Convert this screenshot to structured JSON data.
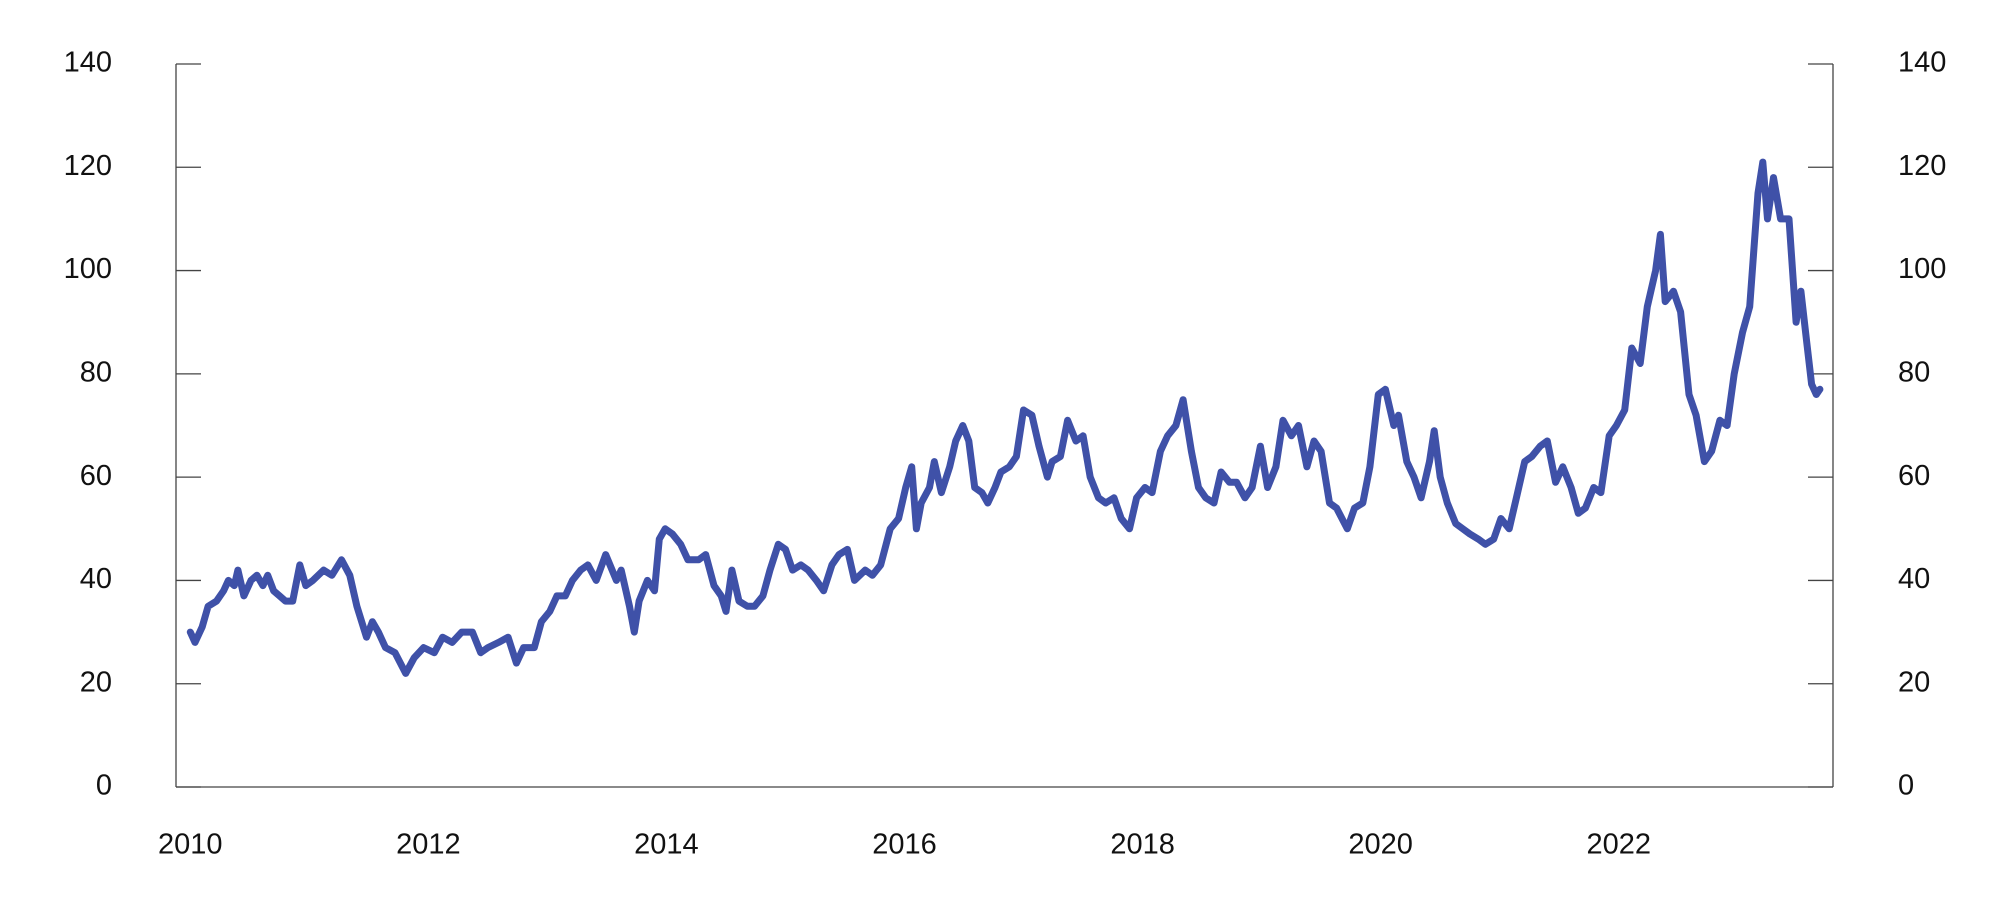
{
  "chart_data": {
    "type": "line",
    "x": [
      2010.0,
      2010.04,
      2010.1,
      2010.15,
      2010.22,
      2010.28,
      2010.32,
      2010.37,
      2010.4,
      2010.45,
      2010.51,
      2010.56,
      2010.61,
      2010.65,
      2010.7,
      2010.75,
      2010.8,
      2010.86,
      2010.92,
      2010.97,
      2011.03,
      2011.12,
      2011.19,
      2011.27,
      2011.34,
      2011.4,
      2011.48,
      2011.53,
      2011.58,
      2011.64,
      2011.72,
      2011.81,
      2011.88,
      2011.96,
      2012.05,
      2012.12,
      2012.2,
      2012.28,
      2012.37,
      2012.44,
      2012.5,
      2012.59,
      2012.67,
      2012.74,
      2012.8,
      2012.89,
      2012.95,
      2013.02,
      2013.08,
      2013.15,
      2013.21,
      2013.28,
      2013.34,
      2013.41,
      2013.49,
      2013.58,
      2013.62,
      2013.69,
      2013.73,
      2013.77,
      2013.84,
      2013.9,
      2013.94,
      2013.99,
      2014.05,
      2014.12,
      2014.18,
      2014.27,
      2014.33,
      2014.4,
      2014.46,
      2014.5,
      2014.55,
      2014.61,
      2014.68,
      2014.74,
      2014.81,
      2014.87,
      2014.94,
      2015.0,
      2015.06,
      2015.13,
      2015.19,
      2015.26,
      2015.32,
      2015.39,
      2015.45,
      2015.52,
      2015.58,
      2015.67,
      2015.73,
      2015.8,
      2015.88,
      2015.95,
      2016.01,
      2016.06,
      2016.1,
      2016.14,
      2016.21,
      2016.25,
      2016.31,
      2016.38,
      2016.43,
      2016.49,
      2016.54,
      2016.59,
      2016.65,
      2016.7,
      2016.76,
      2016.81,
      2016.88,
      2016.94,
      2017.0,
      2017.07,
      2017.13,
      2017.2,
      2017.24,
      2017.31,
      2017.37,
      2017.44,
      2017.5,
      2017.56,
      2017.63,
      2017.69,
      2017.76,
      2017.82,
      2017.89,
      2017.95,
      2018.02,
      2018.08,
      2018.15,
      2018.21,
      2018.28,
      2018.34,
      2018.41,
      2018.47,
      2018.53,
      2018.6,
      2018.66,
      2018.73,
      2018.79,
      2018.86,
      2018.92,
      2018.99,
      2019.05,
      2019.12,
      2019.18,
      2019.25,
      2019.31,
      2019.38,
      2019.44,
      2019.5,
      2019.57,
      2019.63,
      2019.72,
      2019.78,
      2019.85,
      2019.91,
      2019.98,
      2020.04,
      2020.11,
      2020.15,
      2020.22,
      2020.28,
      2020.34,
      2020.41,
      2020.45,
      2020.5,
      2020.56,
      2020.63,
      2020.69,
      2020.75,
      2020.82,
      2020.88,
      2020.95,
      2021.01,
      2021.08,
      2021.14,
      2021.21,
      2021.27,
      2021.34,
      2021.4,
      2021.47,
      2021.53,
      2021.6,
      2021.66,
      2021.72,
      2021.79,
      2021.85,
      2021.92,
      2021.98,
      2022.05,
      2022.11,
      2022.18,
      2022.24,
      2022.31,
      2022.35,
      2022.39,
      2022.46,
      2022.52,
      2022.59,
      2022.65,
      2022.72,
      2022.78,
      2022.85,
      2022.91,
      2022.97,
      2023.04,
      2023.1,
      2023.17,
      2023.21,
      2023.25,
      2023.3,
      2023.36,
      2023.43,
      2023.49,
      2023.53,
      2023.58,
      2023.62,
      2023.66,
      2023.69
    ],
    "series": [
      {
        "color": "#3f51a8",
        "values": [
          30,
          28,
          31,
          35,
          36,
          38,
          40,
          39,
          42,
          37,
          40,
          41,
          39,
          41,
          38,
          37,
          36,
          36,
          43,
          39,
          40,
          42,
          41,
          44,
          41,
          35,
          29,
          32,
          30,
          27,
          26,
          22,
          25,
          27,
          26,
          29,
          28,
          30,
          30,
          26,
          27,
          28,
          29,
          24,
          27,
          27,
          32,
          34,
          37,
          37,
          40,
          42,
          43,
          40,
          45,
          40,
          42,
          35,
          30,
          36,
          40,
          38,
          48,
          50,
          49,
          47,
          44,
          44,
          45,
          39,
          37,
          34,
          42,
          36,
          35,
          35,
          37,
          42,
          47,
          46,
          42,
          43,
          42,
          40,
          38,
          43,
          45,
          46,
          40,
          42,
          41,
          43,
          50,
          52,
          58,
          62,
          50,
          55,
          58,
          63,
          57,
          62,
          67,
          70,
          67,
          58,
          57,
          55,
          58,
          61,
          62,
          64,
          73,
          72,
          66,
          60,
          63,
          64,
          71,
          67,
          68,
          60,
          56,
          55,
          56,
          52,
          50,
          56,
          58,
          57,
          65,
          68,
          70,
          75,
          65,
          58,
          56,
          55,
          61,
          59,
          59,
          56,
          58,
          66,
          58,
          62,
          71,
          68,
          70,
          62,
          67,
          65,
          55,
          54,
          50,
          54,
          55,
          62,
          76,
          77,
          70,
          72,
          63,
          60,
          56,
          63,
          69,
          60,
          55,
          51,
          50,
          49,
          48,
          47,
          48,
          52,
          50,
          56,
          63,
          64,
          66,
          67,
          59,
          62,
          58,
          53,
          54,
          58,
          57,
          68,
          70,
          73,
          85,
          82,
          93,
          100,
          107,
          94,
          96,
          92,
          76,
          72,
          63,
          65,
          71,
          70,
          80,
          88,
          93,
          115,
          121,
          110,
          118,
          110,
          110,
          90,
          96,
          86,
          78,
          76,
          77
        ]
      }
    ],
    "xlim": [
      2009.88,
      2023.8
    ],
    "xticks": [
      2010,
      2012,
      2014,
      2016,
      2018,
      2020,
      2022
    ],
    "ylim": [
      0,
      140
    ],
    "yticks": [
      0,
      20,
      40,
      60,
      80,
      100,
      120,
      140
    ],
    "y2lim": [
      0,
      140
    ],
    "y2ticks": [
      0,
      20,
      40,
      60,
      80,
      100,
      120,
      140
    ]
  }
}
